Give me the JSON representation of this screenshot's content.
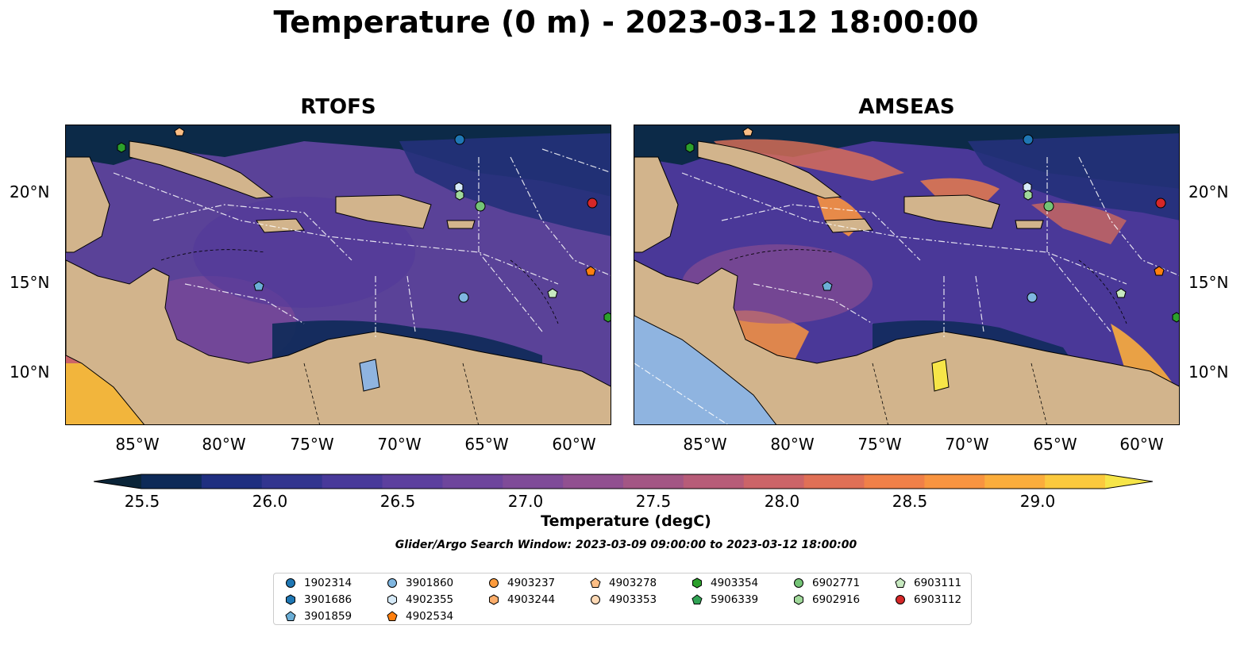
{
  "title": "Temperature (0 m) - 2023-03-12 18:00:00",
  "panels": [
    {
      "title": "RTOFS"
    },
    {
      "title": "AMSEAS"
    }
  ],
  "lon_ticks": [
    "85°W",
    "80°W",
    "75°W",
    "70°W",
    "65°W",
    "60°W"
  ],
  "lat_ticks": [
    "20°N",
    "15°N",
    "10°N"
  ],
  "colorbar": {
    "ticks": [
      "25.5",
      "26.0",
      "26.5",
      "27.0",
      "27.5",
      "28.0",
      "28.5",
      "29.0"
    ],
    "label": "Temperature (degC)",
    "colors": [
      "#0a2438",
      "#0d2a58",
      "#1f2f80",
      "#32358f",
      "#48399a",
      "#5c3f9e",
      "#6e459c",
      "#7f4b98",
      "#915090",
      "#a35684",
      "#b75c78",
      "#cc6468",
      "#e07056",
      "#f08048",
      "#f89440",
      "#fbad3c",
      "#fbc93e",
      "#f6e548"
    ]
  },
  "search_window": "Glider/Argo Search Window: 2023-03-09 09:00:00 to 2023-03-12 18:00:00",
  "legend": [
    {
      "id": "1902314",
      "shape": "circle",
      "color": "#1f77b4"
    },
    {
      "id": "3901686",
      "shape": "hexagon",
      "color": "#1f77b4"
    },
    {
      "id": "3901859",
      "shape": "pentagon",
      "color": "#6baed6"
    },
    {
      "id": "3901860",
      "shape": "circle",
      "color": "#7fb6e0"
    },
    {
      "id": "4902355",
      "shape": "hexagon",
      "color": "#d6eaf8"
    },
    {
      "id": "4902534",
      "shape": "pentagon",
      "color": "#ff7f0e"
    },
    {
      "id": "4903237",
      "shape": "circle",
      "color": "#fd9b3c"
    },
    {
      "id": "4903244",
      "shape": "hexagon",
      "color": "#fdae6b"
    },
    {
      "id": "4903278",
      "shape": "pentagon",
      "color": "#fdbe85"
    },
    {
      "id": "4903353",
      "shape": "circle",
      "color": "#fdd9b5"
    },
    {
      "id": "4903354",
      "shape": "hexagon",
      "color": "#2ca02c"
    },
    {
      "id": "5906339",
      "shape": "pentagon",
      "color": "#31a354"
    },
    {
      "id": "6902771",
      "shape": "circle",
      "color": "#74c476"
    },
    {
      "id": "6902916",
      "shape": "hexagon",
      "color": "#a1d99b"
    },
    {
      "id": "6903111",
      "shape": "pentagon",
      "color": "#c7e9c0"
    },
    {
      "id": "6903112",
      "shape": "circle",
      "color": "#d62728"
    }
  ]
}
